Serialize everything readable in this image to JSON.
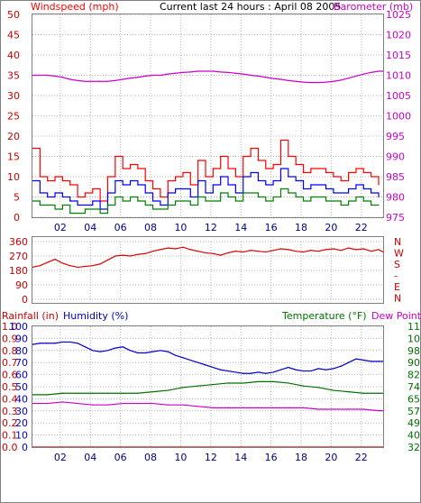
{
  "header": {
    "title": "Current last 24 hours : April 08 2005",
    "left_label": "Windspeed (mph)",
    "right_label": "Barometer (mb)"
  },
  "panel2": {
    "direction_labels": [
      "N",
      "W",
      "S",
      "-",
      "E",
      "N"
    ]
  },
  "panel3": {
    "rain_label": "Rainfall (in)",
    "hum_label": "Humidity (%)",
    "temp_label": "Temperature (°F)",
    "dew_label": "Dew Point"
  },
  "colors": {
    "wind_gust": "#ff0000",
    "wind_avg": "#0000ff",
    "wind_low": "#008000",
    "barometer": "#cc00cc",
    "direction": "#dd0000",
    "humidity": "#0000cc",
    "temperature": "#007000",
    "dewpoint": "#cc00cc",
    "rainfall": "#cc0000",
    "grid": "#b4b4b4",
    "frame": "#808080"
  },
  "chart_data": [
    {
      "type": "line",
      "x_ticks": [
        "02",
        "04",
        "06",
        "08",
        "10",
        "12",
        "14",
        "16",
        "18",
        "20",
        "22"
      ],
      "xlim": [
        23.5,
        23.3
      ],
      "y_left": {
        "label": "Windspeed (mph)",
        "ticks": [
          "0",
          "5",
          "10",
          "15",
          "20",
          "25",
          "30",
          "35",
          "40",
          "45",
          "50"
        ],
        "lim": [
          0,
          50
        ]
      },
      "y_right": {
        "label": "Barometer (mb)",
        "ticks": [
          "975",
          "980",
          "985",
          "990",
          "995",
          "1000",
          "1005",
          "1010",
          "1015",
          "1020",
          "1025"
        ],
        "lim": [
          975,
          1025
        ]
      },
      "grid": true,
      "series": [
        {
          "name": "Barometer (mb)",
          "axis": "right",
          "color": "#cc00cc",
          "x": [
            0,
            0.5,
            1,
            1.5,
            2,
            2.5,
            3,
            3.5,
            4,
            4.5,
            5,
            5.5,
            6,
            6.5,
            7,
            7.5,
            8,
            8.5,
            9,
            9.5,
            10,
            10.5,
            11,
            11.5,
            12,
            12.5,
            13,
            13.5,
            14,
            14.5,
            15,
            15.5,
            16,
            16.5,
            17,
            17.5,
            18,
            18.5,
            19,
            19.5,
            20,
            20.5,
            21,
            21.5,
            22,
            22.5,
            23,
            23.3
          ],
          "values": [
            1010,
            1010,
            1010,
            1009.8,
            1009.5,
            1009,
            1008.7,
            1008.5,
            1008.5,
            1008.5,
            1008.5,
            1008.7,
            1009,
            1009.3,
            1009.5,
            1009.8,
            1010,
            1010,
            1010.3,
            1010.5,
            1010.7,
            1010.8,
            1011,
            1011,
            1011,
            1010.8,
            1010.7,
            1010.5,
            1010.3,
            1010,
            1009.8,
            1009.5,
            1009.2,
            1009,
            1008.7,
            1008.5,
            1008.3,
            1008.2,
            1008.2,
            1008.3,
            1008.5,
            1008.8,
            1009.3,
            1009.8,
            1010.3,
            1010.7,
            1011,
            1011
          ]
        },
        {
          "name": "Wind gust",
          "axis": "left",
          "color": "#ff0000",
          "style": "step",
          "x": [
            0,
            0.5,
            1,
            1.5,
            2,
            2.5,
            3,
            3.5,
            4,
            4.5,
            5,
            5.5,
            6,
            6.5,
            7,
            7.5,
            8,
            8.5,
            9,
            9.5,
            10,
            10.5,
            11,
            11.5,
            12,
            12.5,
            13,
            13.5,
            14,
            14.5,
            15,
            15.5,
            16,
            16.5,
            17,
            17.5,
            18,
            18.5,
            19,
            19.5,
            20,
            20.5,
            21,
            21.5,
            22,
            22.5,
            23
          ],
          "values": [
            17,
            10,
            9,
            10,
            9,
            8,
            5,
            6,
            7,
            4,
            10,
            15,
            12,
            13,
            12,
            9,
            7,
            5,
            9,
            10,
            11,
            8,
            14,
            10,
            12,
            15,
            12,
            10,
            15,
            17,
            14,
            12,
            13,
            19,
            15,
            13,
            11,
            12,
            12,
            11,
            10,
            9,
            11,
            12,
            11,
            10,
            8
          ]
        },
        {
          "name": "Wind average",
          "axis": "left",
          "color": "#0000ff",
          "style": "step",
          "x": [
            0,
            0.5,
            1,
            1.5,
            2,
            2.5,
            3,
            3.5,
            4,
            4.5,
            5,
            5.5,
            6,
            6.5,
            7,
            7.5,
            8,
            8.5,
            9,
            9.5,
            10,
            10.5,
            11,
            11.5,
            12,
            12.5,
            13,
            13.5,
            14,
            14.5,
            15,
            15.5,
            16,
            16.5,
            17,
            17.5,
            18,
            18.5,
            19,
            19.5,
            20,
            20.5,
            21,
            21.5,
            22,
            22.5,
            23
          ],
          "values": [
            9,
            6,
            5,
            6,
            5,
            4,
            3,
            3,
            4,
            2,
            6,
            9,
            8,
            9,
            8,
            6,
            4,
            3,
            6,
            7,
            7,
            5,
            9,
            6,
            8,
            10,
            8,
            6,
            10,
            11,
            9,
            8,
            9,
            12,
            10,
            9,
            7,
            8,
            8,
            7,
            6,
            6,
            7,
            8,
            7,
            6,
            5
          ]
        },
        {
          "name": "Wind low",
          "axis": "left",
          "color": "#008000",
          "style": "step",
          "x": [
            0,
            0.5,
            1,
            1.5,
            2,
            2.5,
            3,
            3.5,
            4,
            4.5,
            5,
            5.5,
            6,
            6.5,
            7,
            7.5,
            8,
            8.5,
            9,
            9.5,
            10,
            10.5,
            11,
            11.5,
            12,
            12.5,
            13,
            13.5,
            14,
            14.5,
            15,
            15.5,
            16,
            16.5,
            17,
            17.5,
            18,
            18.5,
            19,
            19.5,
            20,
            20.5,
            21,
            21.5,
            22,
            22.5,
            23
          ],
          "values": [
            4,
            3,
            3,
            2,
            3,
            1,
            1,
            2,
            2,
            1,
            3,
            5,
            4,
            5,
            4,
            3,
            2,
            2,
            3,
            4,
            4,
            3,
            5,
            4,
            4,
            6,
            5,
            4,
            6,
            6,
            5,
            4,
            5,
            7,
            6,
            5,
            4,
            5,
            5,
            4,
            4,
            3,
            4,
            5,
            4,
            3,
            3
          ]
        }
      ]
    },
    {
      "type": "line",
      "x_ticks": [
        "02",
        "04",
        "06",
        "08",
        "10",
        "12",
        "14",
        "16",
        "18",
        "20",
        "22"
      ],
      "y_left": {
        "ticks": [
          "0",
          "90",
          "180",
          "270",
          "360"
        ],
        "lim": [
          0,
          360
        ]
      },
      "y_right": {
        "ticks": [
          "N",
          "W",
          "S",
          "-",
          "E",
          "N"
        ]
      },
      "grid": true,
      "series": [
        {
          "name": "Wind direction",
          "axis": "left",
          "color": "#dd0000",
          "x": [
            0,
            0.5,
            1,
            1.5,
            2,
            2.5,
            3,
            3.5,
            4,
            4.5,
            5,
            5.5,
            6,
            6.5,
            7,
            7.5,
            8,
            8.5,
            9,
            9.5,
            10,
            10.5,
            11,
            11.5,
            12,
            12.5,
            13,
            13.5,
            14,
            14.5,
            15,
            15.5,
            16,
            16.5,
            17,
            17.5,
            18,
            18.5,
            19,
            19.5,
            20,
            20.5,
            21,
            21.5,
            22,
            22.5,
            23,
            23.3
          ],
          "values": [
            200,
            210,
            230,
            250,
            225,
            210,
            200,
            205,
            210,
            220,
            245,
            270,
            275,
            270,
            280,
            285,
            300,
            310,
            320,
            315,
            325,
            310,
            300,
            290,
            285,
            275,
            290,
            300,
            295,
            305,
            300,
            295,
            305,
            315,
            310,
            300,
            295,
            305,
            300,
            310,
            315,
            305,
            320,
            310,
            315,
            300,
            310,
            295
          ]
        }
      ]
    },
    {
      "type": "line",
      "x_ticks": [
        "02",
        "04",
        "06",
        "08",
        "10",
        "12",
        "14",
        "16",
        "18",
        "20",
        "22"
      ],
      "y_rain": {
        "label": "Rainfall (in)",
        "ticks": [
          "0.0",
          "0.1",
          "0.2",
          "0.3",
          "0.4",
          "0.5",
          "0.6",
          "0.7",
          "0.8",
          "0.9",
          "1.0"
        ],
        "lim": [
          0,
          1
        ]
      },
      "y_humidity": {
        "label": "Humidity (%)",
        "ticks": [
          "0",
          "10",
          "20",
          "30",
          "40",
          "50",
          "60",
          "70",
          "80",
          "90",
          "100"
        ],
        "lim": [
          0,
          100
        ]
      },
      "y_temp": {
        "label": "Temperature (°F)",
        "ticks": [
          "32",
          "40",
          "49",
          "57",
          "65",
          "74",
          "82",
          "90",
          "98",
          "107",
          "115"
        ],
        "lim": [
          32,
          115
        ]
      },
      "grid": true,
      "series": [
        {
          "name": "Humidity (%)",
          "axis": "humidity",
          "color": "#0000cc",
          "x": [
            0,
            0.5,
            1,
            1.5,
            2,
            2.5,
            3,
            3.5,
            4,
            4.5,
            5,
            5.5,
            6,
            6.5,
            7,
            7.5,
            8,
            8.5,
            9,
            9.5,
            10,
            10.5,
            11,
            11.5,
            12,
            12.5,
            13,
            13.5,
            14,
            14.5,
            15,
            15.5,
            16,
            16.5,
            17,
            17.5,
            18,
            18.5,
            19,
            19.5,
            20,
            20.5,
            21,
            21.5,
            22,
            22.5,
            23,
            23.3
          ],
          "values": [
            85,
            86,
            86,
            86,
            87,
            87,
            86,
            83,
            80,
            79,
            80,
            82,
            83,
            80,
            78,
            78,
            79,
            80,
            79,
            76,
            74,
            72,
            70,
            68,
            66,
            64,
            63,
            62,
            61,
            61,
            62,
            61,
            62,
            64,
            66,
            64,
            63,
            63,
            65,
            64,
            65,
            67,
            70,
            73,
            72,
            71,
            71,
            71
          ]
        },
        {
          "name": "Temperature (°F)",
          "axis": "temp",
          "color": "#007000",
          "x": [
            0,
            1,
            2,
            3,
            4,
            5,
            6,
            7,
            8,
            9,
            10,
            11,
            12,
            13,
            14,
            15,
            16,
            17,
            18,
            19,
            20,
            21,
            22,
            23,
            23.3
          ],
          "values": [
            68,
            68,
            69,
            69,
            69,
            69,
            69,
            69,
            70,
            71,
            73,
            74,
            75,
            76,
            76,
            77,
            77,
            76,
            74,
            73,
            71,
            70,
            69,
            69,
            69
          ]
        },
        {
          "name": "Dew Point",
          "axis": "temp",
          "color": "#cc00cc",
          "x": [
            0,
            1,
            2,
            3,
            4,
            5,
            6,
            7,
            8,
            9,
            10,
            11,
            12,
            13,
            14,
            15,
            16,
            17,
            18,
            19,
            20,
            21,
            22,
            23,
            23.3
          ],
          "values": [
            62,
            62,
            63,
            62,
            61,
            61,
            62,
            62,
            62,
            61,
            61,
            60,
            59,
            59,
            59,
            59,
            59,
            59,
            59,
            58,
            58,
            58,
            58,
            57,
            57
          ]
        },
        {
          "name": "Rainfall (in)",
          "axis": "rain",
          "color": "#cc0000",
          "x": [
            0,
            23.3
          ],
          "values": [
            0,
            0
          ]
        }
      ]
    }
  ]
}
